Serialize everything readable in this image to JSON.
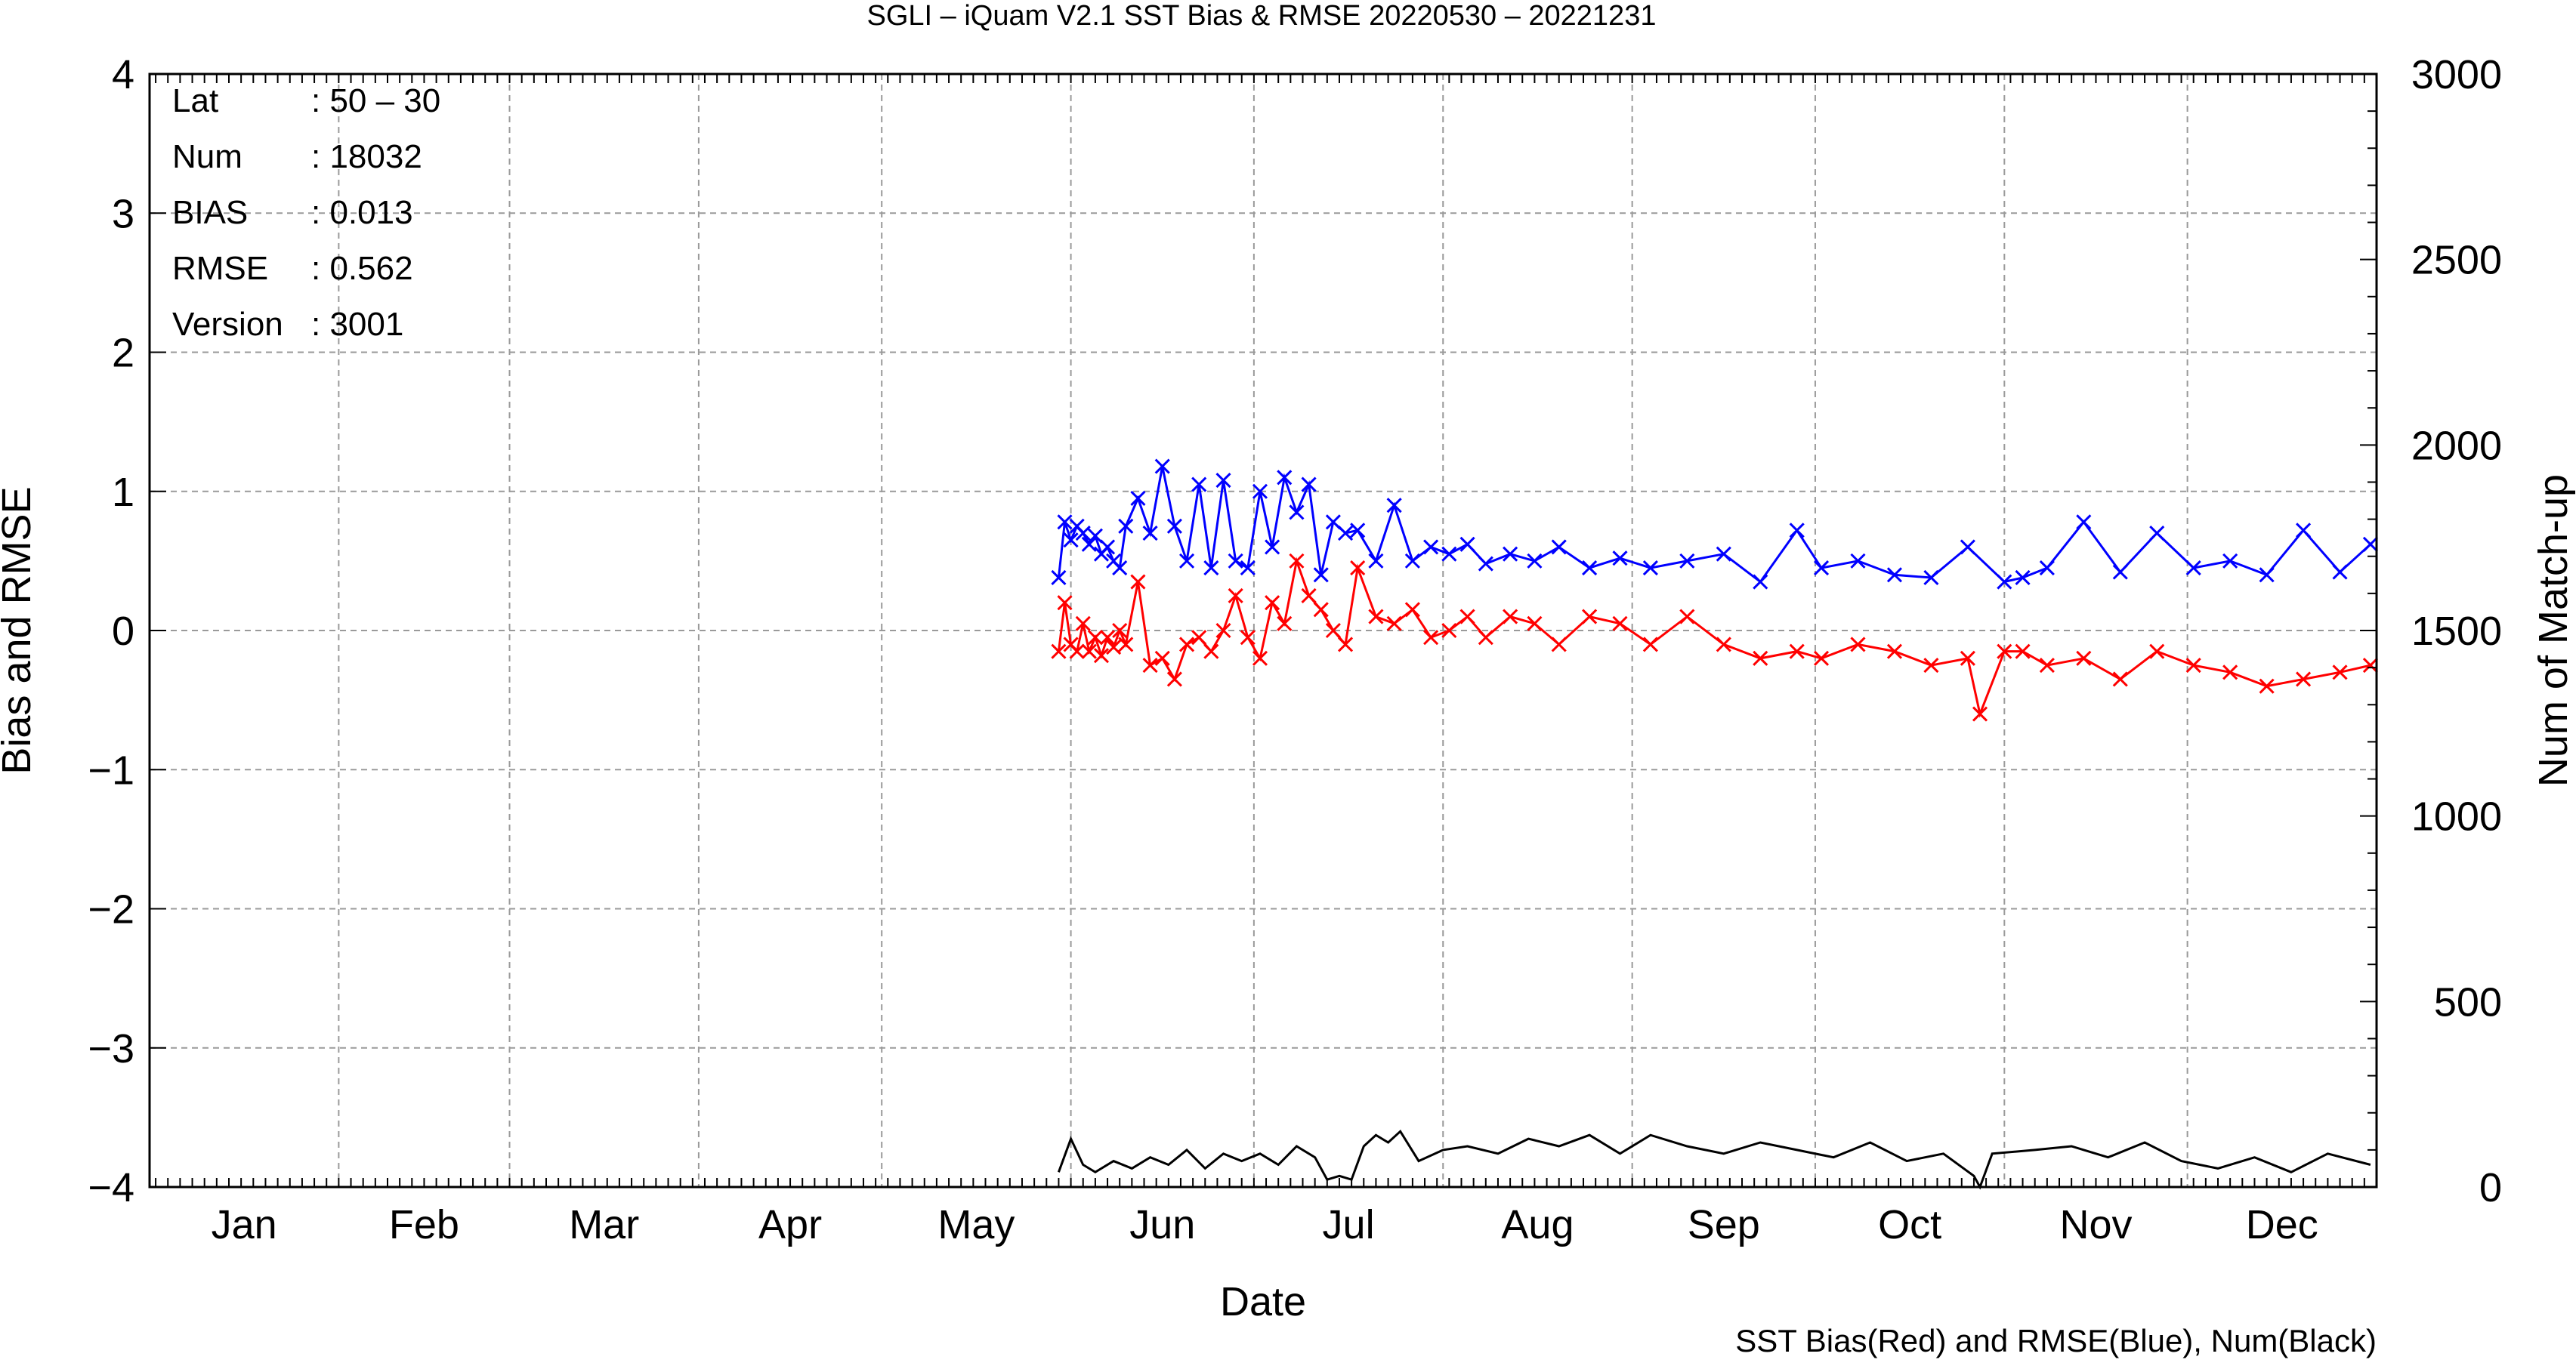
{
  "chart_data": {
    "type": "line",
    "title": "SGLI – iQuam V2.1 SST Bias & RMSE 20220530 – 20221231",
    "xlabel": "Date",
    "ylabel": "Bias and RMSE",
    "y2label": "Num of Match-up",
    "footnote": "SST Bias(Red) and RMSE(Blue), Num(Black)",
    "year": 2022,
    "xlim": [
      "2022-01-01",
      "2022-12-31"
    ],
    "ylim": [
      -4,
      4
    ],
    "y2lim": [
      0,
      3000
    ],
    "grid": true,
    "x_ticks": [
      "Jan",
      "Feb",
      "Mar",
      "Apr",
      "May",
      "Jun",
      "Jul",
      "Aug",
      "Sep",
      "Oct",
      "Nov",
      "Dec"
    ],
    "y_ticks": [
      "4",
      "3",
      "2",
      "1",
      "0",
      "−1",
      "−2",
      "−3",
      "−4"
    ],
    "y2_ticks": [
      "3000",
      "2500",
      "2000",
      "1500",
      "1000",
      "500",
      "0"
    ],
    "info_box": [
      {
        "label": "Lat",
        "value": ": 50 – 30"
      },
      {
        "label": "Num",
        "value": ": 18032"
      },
      {
        "label": "BIAS",
        "value": ": 0.013"
      },
      {
        "label": "RMSE",
        "value": ": 0.562"
      },
      {
        "label": "Version",
        "value": ": 3001"
      }
    ],
    "series_colors": {
      "bias": "#ff0000",
      "rmse": "#0000ff",
      "num": "#000000"
    },
    "series": [
      {
        "key": "rmse",
        "axis": "left",
        "marker": "x",
        "x": [
          "2022-05-30",
          "2022-05-31",
          "2022-06-01",
          "2022-06-02",
          "2022-06-03",
          "2022-06-04",
          "2022-06-05",
          "2022-06-06",
          "2022-06-07",
          "2022-06-08",
          "2022-06-09",
          "2022-06-10",
          "2022-06-12",
          "2022-06-14",
          "2022-06-16",
          "2022-06-18",
          "2022-06-20",
          "2022-06-22",
          "2022-06-24",
          "2022-06-26",
          "2022-06-28",
          "2022-06-30",
          "2022-07-02",
          "2022-07-04",
          "2022-07-06",
          "2022-07-08",
          "2022-07-10",
          "2022-07-12",
          "2022-07-14",
          "2022-07-16",
          "2022-07-18",
          "2022-07-21",
          "2022-07-24",
          "2022-07-27",
          "2022-07-30",
          "2022-08-02",
          "2022-08-05",
          "2022-08-08",
          "2022-08-12",
          "2022-08-16",
          "2022-08-20",
          "2022-08-25",
          "2022-08-30",
          "2022-09-04",
          "2022-09-10",
          "2022-09-16",
          "2022-09-22",
          "2022-09-28",
          "2022-10-02",
          "2022-10-08",
          "2022-10-14",
          "2022-10-20",
          "2022-10-26",
          "2022-11-01",
          "2022-11-04",
          "2022-11-08",
          "2022-11-14",
          "2022-11-20",
          "2022-11-26",
          "2022-12-02",
          "2022-12-08",
          "2022-12-14",
          "2022-12-20",
          "2022-12-26",
          "2022-12-31"
        ],
        "values": [
          0.38,
          0.78,
          0.65,
          0.75,
          0.7,
          0.62,
          0.68,
          0.55,
          0.6,
          0.5,
          0.45,
          0.75,
          0.95,
          0.7,
          1.18,
          0.75,
          0.5,
          1.05,
          0.45,
          1.08,
          0.5,
          0.45,
          1.0,
          0.6,
          1.1,
          0.85,
          1.05,
          0.4,
          0.78,
          0.7,
          0.72,
          0.5,
          0.9,
          0.5,
          0.6,
          0.55,
          0.62,
          0.48,
          0.55,
          0.5,
          0.6,
          0.45,
          0.52,
          0.45,
          0.5,
          0.55,
          0.35,
          0.72,
          0.45,
          0.5,
          0.4,
          0.38,
          0.6,
          0.35,
          0.38,
          0.45,
          0.78,
          0.42,
          0.7,
          0.45,
          0.5,
          0.4,
          0.72,
          0.42,
          0.62
        ]
      },
      {
        "key": "bias",
        "axis": "left",
        "marker": "x",
        "x": [
          "2022-05-30",
          "2022-05-31",
          "2022-06-01",
          "2022-06-02",
          "2022-06-03",
          "2022-06-04",
          "2022-06-05",
          "2022-06-06",
          "2022-06-07",
          "2022-06-08",
          "2022-06-09",
          "2022-06-10",
          "2022-06-12",
          "2022-06-14",
          "2022-06-16",
          "2022-06-18",
          "2022-06-20",
          "2022-06-22",
          "2022-06-24",
          "2022-06-26",
          "2022-06-28",
          "2022-06-30",
          "2022-07-02",
          "2022-07-04",
          "2022-07-06",
          "2022-07-08",
          "2022-07-10",
          "2022-07-12",
          "2022-07-14",
          "2022-07-16",
          "2022-07-18",
          "2022-07-21",
          "2022-07-24",
          "2022-07-27",
          "2022-07-30",
          "2022-08-02",
          "2022-08-05",
          "2022-08-08",
          "2022-08-12",
          "2022-08-16",
          "2022-08-20",
          "2022-08-25",
          "2022-08-30",
          "2022-09-04",
          "2022-09-10",
          "2022-09-16",
          "2022-09-22",
          "2022-09-28",
          "2022-10-02",
          "2022-10-08",
          "2022-10-14",
          "2022-10-20",
          "2022-10-26",
          "2022-10-28",
          "2022-11-01",
          "2022-11-04",
          "2022-11-08",
          "2022-11-14",
          "2022-11-20",
          "2022-11-26",
          "2022-12-02",
          "2022-12-08",
          "2022-12-14",
          "2022-12-20",
          "2022-12-26",
          "2022-12-31"
        ],
        "values": [
          -0.15,
          0.2,
          -0.1,
          -0.15,
          0.05,
          -0.15,
          -0.05,
          -0.18,
          -0.05,
          -0.12,
          0.0,
          -0.1,
          0.35,
          -0.25,
          -0.2,
          -0.35,
          -0.1,
          -0.05,
          -0.15,
          0.0,
          0.25,
          -0.05,
          -0.2,
          0.2,
          0.05,
          0.5,
          0.25,
          0.15,
          0.0,
          -0.1,
          0.45,
          0.1,
          0.05,
          0.15,
          -0.05,
          0.0,
          0.1,
          -0.05,
          0.1,
          0.05,
          -0.1,
          0.1,
          0.05,
          -0.1,
          0.1,
          -0.1,
          -0.2,
          -0.15,
          -0.2,
          -0.1,
          -0.15,
          -0.25,
          -0.2,
          -0.6,
          -0.15,
          -0.15,
          -0.25,
          -0.2,
          -0.35,
          -0.15,
          -0.25,
          -0.3,
          -0.4,
          -0.35,
          -0.3,
          -0.25
        ]
      },
      {
        "key": "num",
        "axis": "right",
        "marker": "none",
        "x": [
          "2022-05-30",
          "2022-06-01",
          "2022-06-03",
          "2022-06-05",
          "2022-06-08",
          "2022-06-11",
          "2022-06-14",
          "2022-06-17",
          "2022-06-20",
          "2022-06-23",
          "2022-06-26",
          "2022-06-29",
          "2022-07-02",
          "2022-07-05",
          "2022-07-08",
          "2022-07-11",
          "2022-07-13",
          "2022-07-15",
          "2022-07-17",
          "2022-07-19",
          "2022-07-21",
          "2022-07-23",
          "2022-07-25",
          "2022-07-28",
          "2022-08-01",
          "2022-08-05",
          "2022-08-10",
          "2022-08-15",
          "2022-08-20",
          "2022-08-25",
          "2022-08-30",
          "2022-09-04",
          "2022-09-10",
          "2022-09-16",
          "2022-09-22",
          "2022-09-28",
          "2022-10-04",
          "2022-10-10",
          "2022-10-16",
          "2022-10-22",
          "2022-10-27",
          "2022-10-28",
          "2022-10-30",
          "2022-11-06",
          "2022-11-12",
          "2022-11-18",
          "2022-11-24",
          "2022-11-30",
          "2022-12-06",
          "2022-12-12",
          "2022-12-18",
          "2022-12-24",
          "2022-12-31"
        ],
        "values": [
          40,
          130,
          60,
          40,
          70,
          50,
          80,
          60,
          100,
          50,
          90,
          70,
          90,
          60,
          110,
          80,
          20,
          30,
          20,
          110,
          140,
          120,
          150,
          70,
          100,
          110,
          90,
          130,
          110,
          140,
          90,
          140,
          110,
          90,
          120,
          100,
          80,
          120,
          70,
          90,
          30,
          0,
          90,
          100,
          110,
          80,
          120,
          70,
          50,
          80,
          40,
          90,
          60
        ]
      }
    ]
  }
}
